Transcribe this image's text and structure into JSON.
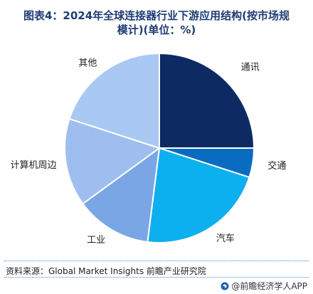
{
  "header": {
    "title_line1": "图表4：2024年全球连接器行业下游应用结构(按市场规",
    "title_line2": "模计)(单位：%)"
  },
  "chart_data": {
    "type": "pie",
    "title": "图表4：2024年全球连接器行业下游应用结构(按市场规模计)(单位：%)",
    "slices": [
      {
        "label": "通讯",
        "value": 25,
        "color": "#0d2a63"
      },
      {
        "label": "交通",
        "value": 5,
        "color": "#0a6cc0"
      },
      {
        "label": "汽车",
        "value": 22,
        "color": "#0db0ee"
      },
      {
        "label": "工业",
        "value": 13,
        "color": "#7aa6e6"
      },
      {
        "label": "计算机周边",
        "value": 15,
        "color": "#9fbef0"
      },
      {
        "label": "其他",
        "value": 20,
        "color": "#a9c8f4"
      }
    ],
    "start_angle_deg": 0,
    "direction": "clockwise",
    "data_labels": false,
    "legend": "none"
  },
  "footer": {
    "source": "资料来源：Global Market Insights 前瞻产业研究院",
    "brand": "@前瞻经济学人APP",
    "brand_logo_icon": "qianzhan-logo-icon"
  },
  "colors": {
    "title": "#1f3c73",
    "divider": "#4f7fc9"
  }
}
